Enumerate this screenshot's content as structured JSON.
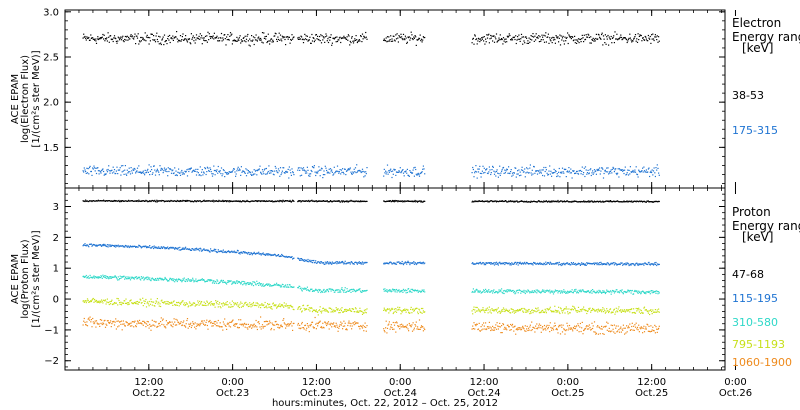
{
  "chart_data": [
    {
      "type": "scatter",
      "ylabel": [
        "ACE EPAM",
        "log(Electron Flux)",
        "[1/(cm²s ster MeV)]"
      ],
      "ylim": [
        1.05,
        3.02
      ],
      "yticks": [
        1.5,
        2.0,
        2.5,
        3.0
      ],
      "ytick_labels": [
        "1.5",
        "2.0",
        "2.5",
        "3.0"
      ],
      "xlim": [
        0,
        94.5
      ],
      "x_unit": "hours since Oct. 22, 2012 00:00",
      "legend": {
        "title": [
          "Electron",
          "Energy ranges",
          "[keV]"
        ],
        "placement": "right"
      },
      "data_gaps": [
        [
          32.7,
          33.2
        ],
        [
          43.2,
          45.5
        ],
        [
          51.5,
          58.2
        ]
      ],
      "series": [
        {
          "name": "38-53",
          "color": "#000000",
          "x_start": 2.5,
          "x_end": 85.0,
          "mean": 2.71,
          "spread": 0.05
        },
        {
          "name": "175-315",
          "color": "#1e73d2",
          "x_start": 2.5,
          "x_end": 85.0,
          "mean": 1.24,
          "spread": 0.05
        }
      ]
    },
    {
      "type": "scatter",
      "ylabel": [
        "ACE EPAM",
        "log(Proton Flux)",
        "[1/(cm²s ster MeV)]"
      ],
      "ylim": [
        -2.3,
        3.6
      ],
      "yticks": [
        -2,
        -1,
        0,
        1,
        2,
        3
      ],
      "ytick_labels": [
        "−2",
        "−1",
        "0",
        "1",
        "2",
        "3"
      ],
      "xlim": [
        0,
        94.5
      ],
      "xticks": [
        12,
        24,
        36,
        48,
        60,
        72,
        84,
        96
      ],
      "xtick_labels": [
        [
          "12:00",
          "Oct.22"
        ],
        [
          "0:00",
          "Oct.23"
        ],
        [
          "12:00",
          "Oct.23"
        ],
        [
          "0:00",
          "Oct.24"
        ],
        [
          "12:00",
          "Oct.24"
        ],
        [
          "0:00",
          "Oct.25"
        ],
        [
          "12:00",
          "Oct.25"
        ],
        [
          "0:00",
          "Oct.26"
        ]
      ],
      "xlabel": "hours:minutes, Oct. 22, 2012 – Oct. 25, 2012",
      "legend": {
        "title": [
          "Proton",
          "Energy ranges",
          "[keV]"
        ],
        "placement": "right"
      },
      "data_gaps": [
        [
          32.7,
          33.2
        ],
        [
          43.2,
          45.5
        ],
        [
          51.5,
          58.2
        ]
      ],
      "series": [
        {
          "name": "47-68",
          "color": "#000000",
          "x_start": 2.5,
          "x_end": 85.0,
          "profile": [
            [
              2.5,
              3.2
            ],
            [
              85.0,
              3.18
            ]
          ],
          "spread": 0.02
        },
        {
          "name": "115-195",
          "color": "#1e73d2",
          "x_start": 2.5,
          "x_end": 85.0,
          "profile": [
            [
              2.5,
              1.78
            ],
            [
              14.0,
              1.68
            ],
            [
              24.0,
              1.55
            ],
            [
              31.0,
              1.42
            ],
            [
              36.0,
              1.2
            ],
            [
              85.0,
              1.15
            ]
          ],
          "spread": 0.04
        },
        {
          "name": "310-580",
          "color": "#2ed8c8",
          "x_start": 2.5,
          "x_end": 85.0,
          "profile": [
            [
              2.5,
              0.75
            ],
            [
              20.0,
              0.62
            ],
            [
              31.0,
              0.45
            ],
            [
              36.0,
              0.3
            ],
            [
              85.0,
              0.25
            ]
          ],
          "spread": 0.06
        },
        {
          "name": "795-1193",
          "color": "#c7e01a",
          "x_start": 2.5,
          "x_end": 85.0,
          "profile": [
            [
              2.5,
              -0.05
            ],
            [
              31.0,
              -0.2
            ],
            [
              36.0,
              -0.35
            ],
            [
              85.0,
              -0.35
            ]
          ],
          "spread": 0.09
        },
        {
          "name": "1060-1900",
          "color": "#ee8a1c",
          "x_start": 2.5,
          "x_end": 85.0,
          "profile": [
            [
              2.5,
              -0.75
            ],
            [
              85.0,
              -0.95
            ]
          ],
          "spread": 0.15
        }
      ]
    }
  ]
}
